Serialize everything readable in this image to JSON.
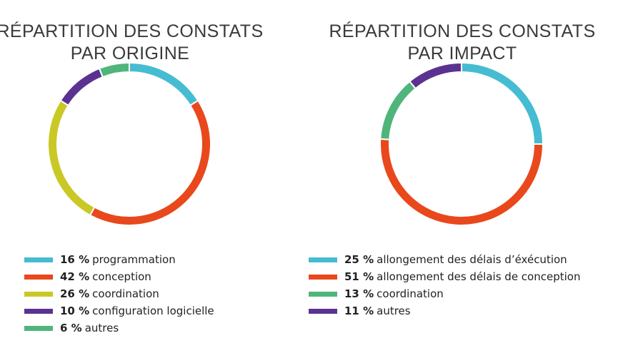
{
  "chart_data": [
    {
      "type": "pie",
      "style": "donut",
      "title_lines": [
        "RÉPARTITION DES CONSTATS",
        "PAR ORIGINE"
      ],
      "slices": [
        {
          "label": "programmation",
          "value": 16,
          "value_text": "16 %",
          "color": "#45bcd2"
        },
        {
          "label": "conception",
          "value": 42,
          "value_text": "42 %",
          "color": "#e8481c"
        },
        {
          "label": "coordination",
          "value": 26,
          "value_text": "26 %",
          "color": "#c9c825"
        },
        {
          "label": "configuration logicielle",
          "value": 10,
          "value_text": "10 %",
          "color": "#5b3291"
        },
        {
          "label": "autres",
          "value": 6,
          "value_text": "6 %",
          "color": "#4fb57a"
        }
      ],
      "legend_position": "bottom"
    },
    {
      "type": "pie",
      "style": "donut",
      "title_lines": [
        "RÉPARTITION DES CONSTATS",
        "PAR IMPACT"
      ],
      "slices": [
        {
          "label": "allongement des délais d’éxécution",
          "value": 25,
          "value_text": "25 %",
          "color": "#45bcd2"
        },
        {
          "label": "allongement des délais de conception",
          "value": 51,
          "value_text": "51 %",
          "color": "#e8481c"
        },
        {
          "label": "coordination",
          "value": 13,
          "value_text": "13 %",
          "color": "#4fb57a"
        },
        {
          "label": "autres",
          "value": 11,
          "value_text": "11 %",
          "color": "#5b3291"
        }
      ],
      "legend_position": "bottom"
    }
  ]
}
